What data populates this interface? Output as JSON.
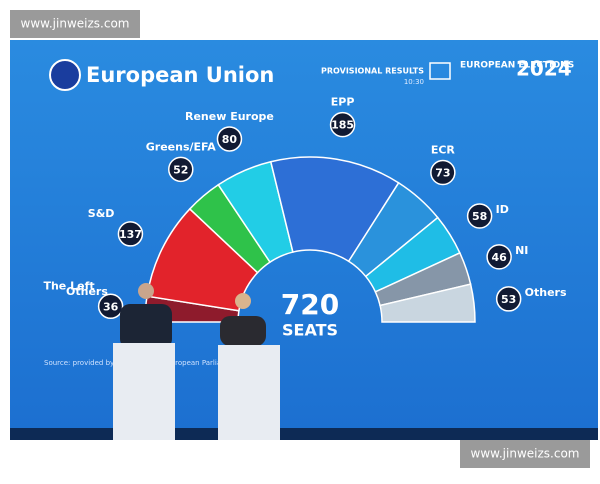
{
  "chart_data": {
    "type": "parliament",
    "title": "European Union",
    "header_small": "PROVISIONAL RESULTS",
    "time": "10:30",
    "header_event": "EUROPEAN ELECTIONS",
    "header_year": "2024",
    "total_seats": 720,
    "total_caption": "SEATS",
    "source": "Source: provided by Verian for the European Parliament",
    "annotations": [
      "Others"
    ],
    "categories": [
      "The Left",
      "S&D",
      "Greens/EFA",
      "Renew Europe",
      "EPP",
      "ECR",
      "ID",
      "NI",
      "Others"
    ],
    "values": [
      36,
      137,
      52,
      80,
      185,
      73,
      58,
      46,
      53
    ],
    "colors": [
      "#8e1b2c",
      "#e2232b",
      "#2fc24a",
      "#22cde6",
      "#2d6fd6",
      "#2a92dc",
      "#1fbde6",
      "#8696a8",
      "#c9d6e0"
    ]
  },
  "watermarks": [
    "www.jinweizs.com",
    "www.jinweizs.com"
  ]
}
